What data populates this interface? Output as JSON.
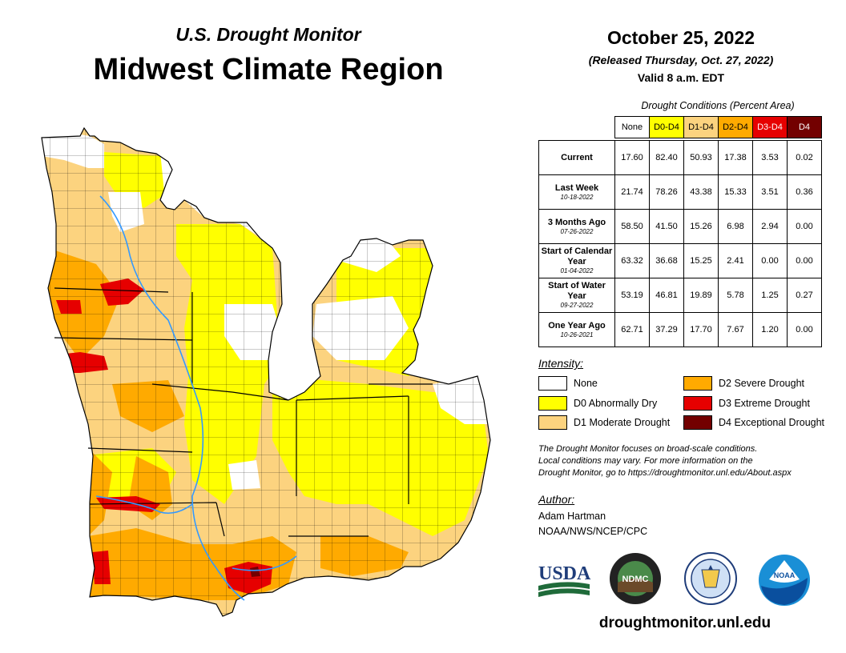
{
  "header": {
    "subtitle": "U.S. Drought Monitor",
    "title": "Midwest Climate Region",
    "date": "October 25, 2022",
    "released": "(Released Thursday, Oct. 27, 2022)",
    "valid": "Valid 8 a.m. EDT"
  },
  "table": {
    "caption": "Drought Conditions (Percent Area)",
    "columns": [
      "None",
      "D0-D4",
      "D1-D4",
      "D2-D4",
      "D3-D4",
      "D4"
    ],
    "rows": [
      {
        "label": "Current",
        "date": "",
        "values": [
          "17.60",
          "82.40",
          "50.93",
          "17.38",
          "3.53",
          "0.02"
        ]
      },
      {
        "label": "Last Week",
        "date": "10-18-2022",
        "values": [
          "21.74",
          "78.26",
          "43.38",
          "15.33",
          "3.51",
          "0.36"
        ]
      },
      {
        "label": "3 Months Ago",
        "date": "07-26-2022",
        "values": [
          "58.50",
          "41.50",
          "15.26",
          "6.98",
          "2.94",
          "0.00"
        ]
      },
      {
        "label": "Start of Calendar Year",
        "date": "01-04-2022",
        "values": [
          "63.32",
          "36.68",
          "15.25",
          "2.41",
          "0.00",
          "0.00"
        ]
      },
      {
        "label": "Start of Water Year",
        "date": "09-27-2022",
        "values": [
          "53.19",
          "46.81",
          "19.89",
          "5.78",
          "1.25",
          "0.27"
        ]
      },
      {
        "label": "One Year Ago",
        "date": "10-26-2021",
        "values": [
          "62.71",
          "37.29",
          "17.70",
          "7.67",
          "1.20",
          "0.00"
        ]
      }
    ]
  },
  "legend": {
    "title": "Intensity:",
    "items": [
      {
        "label": "None",
        "color": "#ffffff"
      },
      {
        "label": "D0 Abnormally Dry",
        "color": "#ffff00"
      },
      {
        "label": "D1 Moderate Drought",
        "color": "#fcd37f"
      },
      {
        "label": "D2 Severe Drought",
        "color": "#ffaa00"
      },
      {
        "label": "D3 Extreme Drought",
        "color": "#e60000"
      },
      {
        "label": "D4 Exceptional Drought",
        "color": "#730000"
      }
    ]
  },
  "note": {
    "line1": "The Drought Monitor focuses on broad-scale conditions.",
    "line2": "Local conditions may vary. For more information on the",
    "line3": "Drought Monitor, go to https://droughtmonitor.unl.edu/About.aspx"
  },
  "author": {
    "title": "Author:",
    "name": "Adam Hartman",
    "org": "NOAA/NWS/NCEP/CPC"
  },
  "logos": {
    "usda": "USDA",
    "ndmc": "NDMC",
    "noaa": "NOAA"
  },
  "footer": {
    "site": "droughtmonitor.unl.edu"
  }
}
